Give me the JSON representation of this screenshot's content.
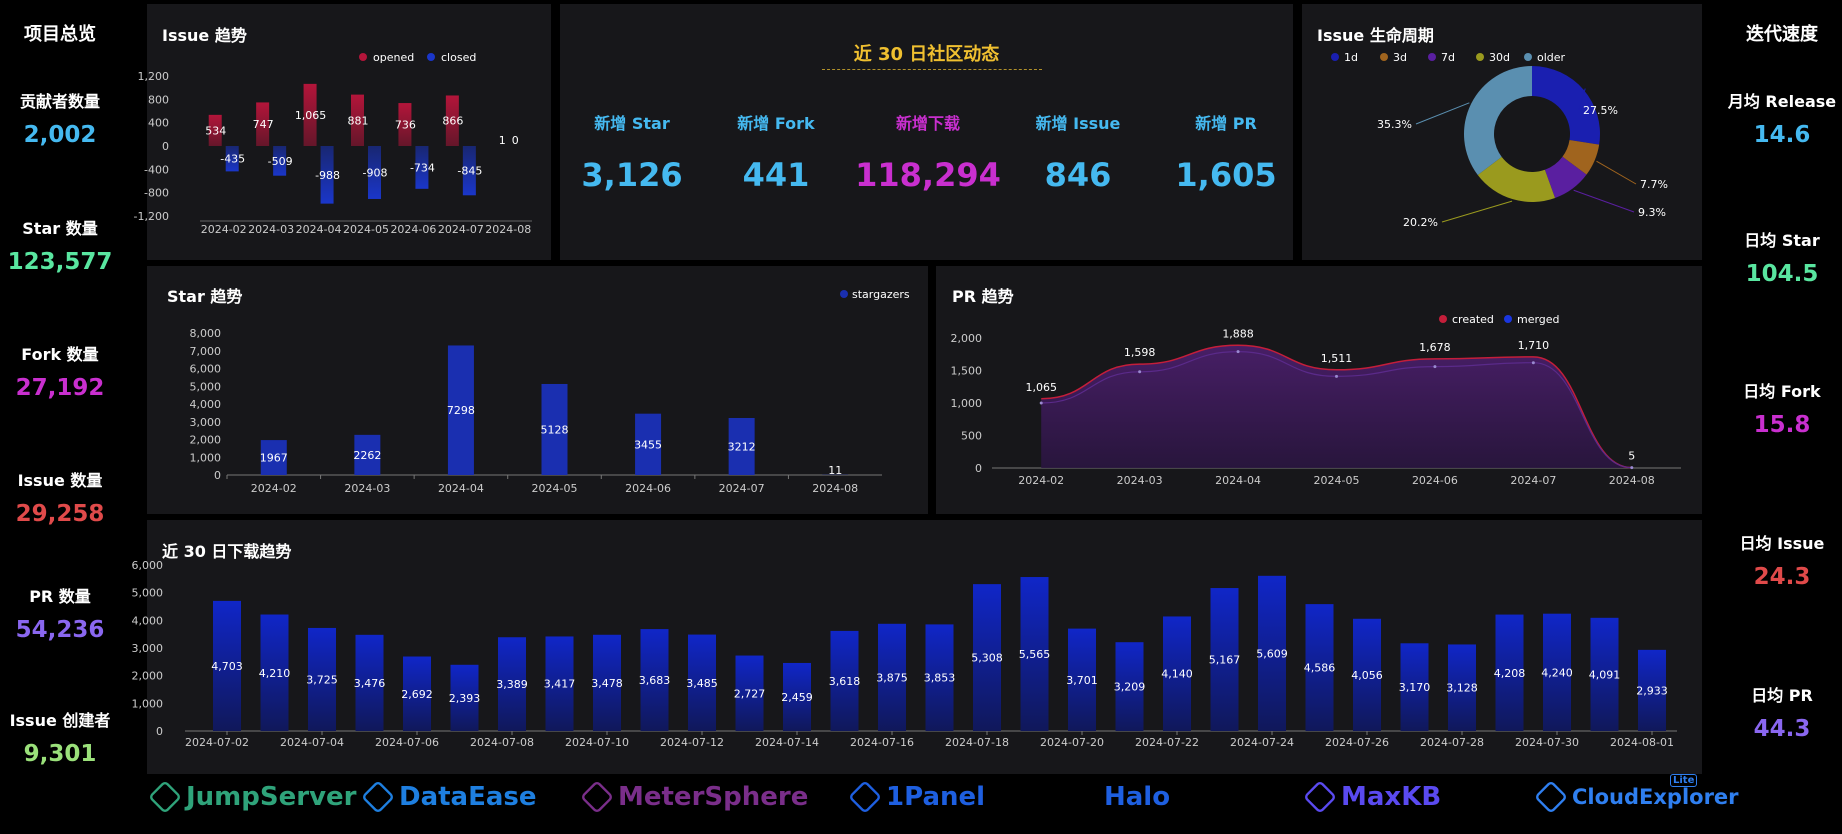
{
  "left": {
    "title": "项目总览",
    "stats": [
      {
        "label": "贡献者数量",
        "value": "2,002",
        "color": "#45b9f0"
      },
      {
        "label": "Star 数量",
        "value": "123,577",
        "color": "#59e6a0"
      },
      {
        "label": "Fork 数量",
        "value": "27,192",
        "color": "#c92fcf"
      },
      {
        "label": "Issue 数量",
        "value": "29,258",
        "color": "#e04a4a"
      },
      {
        "label": "PR 数量",
        "value": "54,236",
        "color": "#8a67f0"
      },
      {
        "label": "Issue 创建者",
        "value": "9,301",
        "color": "#9ae07a"
      }
    ]
  },
  "right": {
    "title": "迭代速度",
    "stats": [
      {
        "label": "月均 Release",
        "value": "14.6",
        "color": "#45b9f0"
      },
      {
        "label": "日均 Star",
        "value": "104.5",
        "color": "#59e6a0"
      },
      {
        "label": "日均 Fork",
        "value": "15.8",
        "color": "#c92fcf"
      },
      {
        "label": "日均 Issue",
        "value": "24.3",
        "color": "#e04a4a"
      },
      {
        "label": "日均 PR",
        "value": "44.3",
        "color": "#8a67f0"
      }
    ]
  },
  "community": {
    "title": "近 30 日社区动态",
    "items": [
      {
        "label": "新增 Star",
        "value": "3,126",
        "color": "#45b9f0"
      },
      {
        "label": "新增 Fork",
        "value": "441",
        "color": "#45b9f0"
      },
      {
        "label": "新增下载",
        "value": "118,294",
        "color": "#c92fcf"
      },
      {
        "label": "新增 Issue",
        "value": "846",
        "color": "#45b9f0"
      },
      {
        "label": "新增 PR",
        "value": "1,605",
        "color": "#45b9f0"
      }
    ]
  },
  "logos": [
    {
      "name": "JumpServer",
      "color": "#2fa37a",
      "icon": "jumpserver-icon"
    },
    {
      "name": "DataEase",
      "color": "#1e7fe0",
      "icon": "dataease-icon"
    },
    {
      "name": "MeterSphere",
      "color": "#7a2e8a",
      "icon": "metersphere-icon"
    },
    {
      "name": "1Panel",
      "color": "#1e5fe0",
      "icon": "1panel-icon"
    },
    {
      "name": "Halo",
      "color": "#1e5fe0",
      "icon": ""
    },
    {
      "name": "MaxKB",
      "color": "#5a4af0",
      "icon": "maxkb-icon"
    },
    {
      "name": "CloudExplorer",
      "color": "#2f7ff0",
      "icon": "cloudexplorer-icon",
      "badge": "Lite"
    }
  ],
  "chart_data": [
    {
      "id": "issue_trend",
      "type": "bar",
      "title": "Issue 趋势",
      "categories": [
        "2024-02",
        "2024-03",
        "2024-04",
        "2024-05",
        "2024-06",
        "2024-07",
        "2024-08"
      ],
      "series": [
        {
          "name": "opened",
          "values": [
            534,
            747,
            1065,
            881,
            736,
            866,
            1
          ],
          "color": "#b3153a"
        },
        {
          "name": "closed",
          "values": [
            -435,
            -509,
            -988,
            -908,
            -734,
            -845,
            0
          ],
          "color": "#1a36c9"
        }
      ],
      "yticks": [
        "1,200",
        "800",
        "400",
        "0",
        "-400",
        "-800",
        "-1,200"
      ],
      "ylim": [
        -1200,
        1200
      ],
      "legend": "top-right"
    },
    {
      "id": "lifecycle",
      "type": "pie",
      "title": "Issue 生命周期",
      "labels": [
        "1d",
        "3d",
        "7d",
        "30d",
        "older"
      ],
      "values": [
        27.5,
        7.7,
        9.3,
        20.2,
        35.3
      ],
      "value_labels": [
        "27.5%",
        "7.7%",
        "9.3%",
        "20.2%",
        "35.3%"
      ],
      "colors": [
        "#1a1fb0",
        "#a0641e",
        "#5a1fa0",
        "#9a9a1e",
        "#5a8fb0"
      ],
      "legend": "top"
    },
    {
      "id": "star_trend",
      "type": "bar",
      "title": "Star 趋势",
      "categories": [
        "2024-02",
        "2024-03",
        "2024-04",
        "2024-05",
        "2024-06",
        "2024-07",
        "2024-08"
      ],
      "series": [
        {
          "name": "stargazers",
          "values": [
            1967,
            2262,
            7298,
            5128,
            3455,
            3212,
            11
          ],
          "color": "#1a2fb0"
        }
      ],
      "yticks": [
        "8,000",
        "7,000",
        "6,000",
        "5,000",
        "4,000",
        "3,000",
        "2,000",
        "1,000",
        "0"
      ],
      "ylim": [
        0,
        8000
      ],
      "legend": "top-right"
    },
    {
      "id": "pr_trend",
      "type": "area",
      "title": "PR 趋势",
      "categories": [
        "2024-02",
        "2024-03",
        "2024-04",
        "2024-05",
        "2024-06",
        "2024-07",
        "2024-08"
      ],
      "series": [
        {
          "name": "created",
          "values": [
            1065,
            1598,
            1888,
            1511,
            1678,
            1710,
            5
          ],
          "color": "#c41e3a"
        },
        {
          "name": "merged",
          "values": [
            1000,
            1480,
            1790,
            1410,
            1560,
            1620,
            5
          ],
          "color": "#1a36e0"
        }
      ],
      "data_labels": [
        "1,065",
        "1,598",
        "1,888",
        "1,511",
        "1,678",
        "1,710",
        "5"
      ],
      "yticks": [
        "2,000",
        "1,500",
        "1,000",
        "500",
        "0"
      ],
      "ylim": [
        0,
        2000
      ],
      "legend": "top-right"
    },
    {
      "id": "download_trend",
      "type": "bar",
      "title": "近 30 日下载趋势",
      "categories": [
        "2024-07-02",
        "2024-07-03",
        "2024-07-04",
        "2024-07-05",
        "2024-07-06",
        "2024-07-07",
        "2024-07-08",
        "2024-07-09",
        "2024-07-10",
        "2024-07-11",
        "2024-07-12",
        "2024-07-13",
        "2024-07-14",
        "2024-07-15",
        "2024-07-16",
        "2024-07-17",
        "2024-07-18",
        "2024-07-19",
        "2024-07-20",
        "2024-07-21",
        "2024-07-22",
        "2024-07-23",
        "2024-07-24",
        "2024-07-25",
        "2024-07-26",
        "2024-07-27",
        "2024-07-28",
        "2024-07-29",
        "2024-07-30",
        "2024-07-31",
        "2024-08-01"
      ],
      "series": [
        {
          "name": "downloads",
          "values": [
            4703,
            4210,
            3725,
            3476,
            2692,
            2393,
            3389,
            3417,
            3478,
            3683,
            3485,
            2727,
            2459,
            3618,
            3875,
            3853,
            5308,
            5565,
            3701,
            3209,
            4140,
            5167,
            5609,
            4586,
            4056,
            3170,
            3128,
            4208,
            4240,
            4091,
            2933
          ],
          "color": "#1428b8"
        }
      ],
      "xticks": [
        "2024-07-02",
        "2024-07-04",
        "2024-07-06",
        "2024-07-08",
        "2024-07-10",
        "2024-07-12",
        "2024-07-14",
        "2024-07-16",
        "2024-07-18",
        "2024-07-20",
        "2024-07-22",
        "2024-07-24",
        "2024-07-26",
        "2024-07-28",
        "2024-07-30",
        "2024-08-01"
      ],
      "yticks": [
        "6,000",
        "5,000",
        "4,000",
        "3,000",
        "2,000",
        "1,000",
        "0"
      ],
      "ylim": [
        0,
        6000
      ]
    }
  ]
}
